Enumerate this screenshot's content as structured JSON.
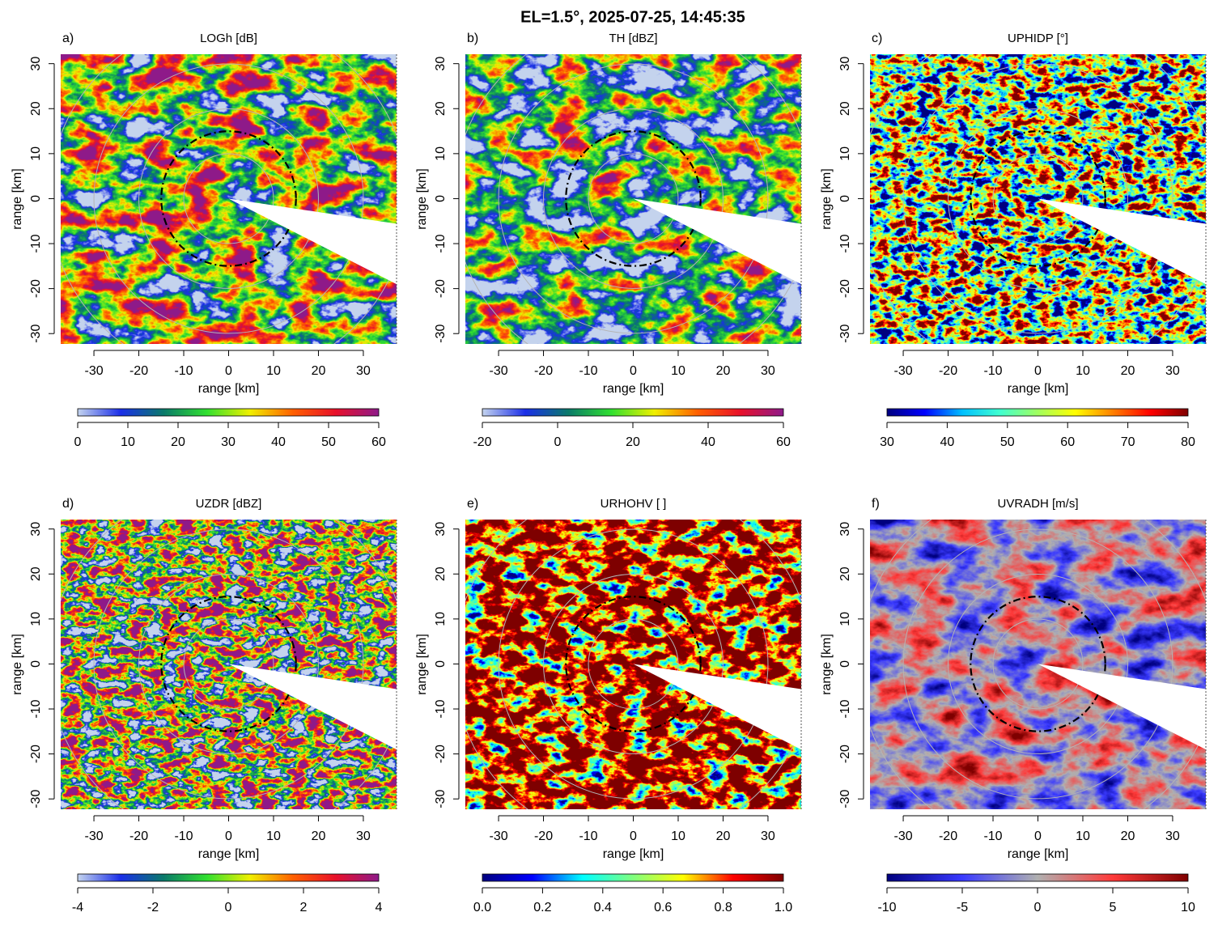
{
  "title": "EL=1.5°, 2025-07-25, 14:45:35",
  "chart_data": [
    {
      "type": "radar_ppi",
      "panel_label": "a)",
      "title": "LOGh [dB]",
      "xlabel": "range [km]",
      "ylabel": "range [km]",
      "xlim": [
        -37.4,
        37.4
      ],
      "ylim": [
        -32.3,
        32.1
      ],
      "xticks": [
        -30,
        -20,
        -10,
        0,
        10,
        20,
        30
      ],
      "yticks": [
        -30,
        -20,
        -10,
        0,
        10,
        20,
        30
      ],
      "cbar_lim": [
        0,
        60
      ],
      "cbar_ticks": [
        0,
        10,
        20,
        30,
        40,
        50,
        60
      ],
      "colormap": [
        "#c4d4ee",
        "#1a2ee8",
        "#0a7a6a",
        "#30e030",
        "#f0f000",
        "#ff6000",
        "#e8102a",
        "#8e1a8a"
      ]
    },
    {
      "type": "radar_ppi",
      "panel_label": "b)",
      "title": "TH [dBZ]",
      "xlabel": "range [km]",
      "ylabel": "range [km]",
      "xlim": [
        -37.4,
        37.4
      ],
      "ylim": [
        -32.3,
        32.1
      ],
      "xticks": [
        -30,
        -20,
        -10,
        0,
        10,
        20,
        30
      ],
      "yticks": [
        -30,
        -20,
        -10,
        0,
        10,
        20,
        30
      ],
      "cbar_lim": [
        -20,
        60
      ],
      "cbar_ticks": [
        -20,
        0,
        20,
        40,
        60
      ],
      "colormap": [
        "#c4d4ee",
        "#1a2ee8",
        "#0a7a6a",
        "#30e030",
        "#f0f000",
        "#ff6000",
        "#e8102a",
        "#8e1a8a"
      ]
    },
    {
      "type": "radar_ppi",
      "panel_label": "c)",
      "title": "UPHIDP [°]",
      "xlabel": "range [km]",
      "ylabel": "range [km]",
      "xlim": [
        -37.4,
        37.4
      ],
      "ylim": [
        -32.3,
        32.1
      ],
      "xticks": [
        -30,
        -20,
        -10,
        0,
        10,
        20,
        30
      ],
      "yticks": [
        -30,
        -20,
        -10,
        0,
        10,
        20,
        30
      ],
      "cbar_lim": [
        30,
        80
      ],
      "cbar_ticks": [
        30,
        40,
        50,
        60,
        70,
        80
      ],
      "colormap": [
        "#00007f",
        "#0000ff",
        "#00c0ff",
        "#40ffd0",
        "#a0ff60",
        "#ffff00",
        "#ff8000",
        "#ff0000",
        "#7f0000"
      ]
    },
    {
      "type": "radar_ppi",
      "panel_label": "d)",
      "title": "UZDR [dBZ]",
      "xlabel": "range [km]",
      "ylabel": "range [km]",
      "xlim": [
        -37.4,
        37.4
      ],
      "ylim": [
        -32.3,
        32.1
      ],
      "xticks": [
        -30,
        -20,
        -10,
        0,
        10,
        20,
        30
      ],
      "yticks": [
        -30,
        -20,
        -10,
        0,
        10,
        20,
        30
      ],
      "cbar_lim": [
        -4,
        4
      ],
      "cbar_ticks": [
        -4,
        -2,
        0,
        2,
        4
      ],
      "colormap": [
        "#c4d4ee",
        "#1a2ee8",
        "#0a7a6a",
        "#30e030",
        "#f0f000",
        "#ff6000",
        "#e8102a",
        "#8e1a8a"
      ]
    },
    {
      "type": "radar_ppi",
      "panel_label": "e)",
      "title": "URHOHV [ ]",
      "xlabel": "range [km]",
      "ylabel": "range [km]",
      "xlim": [
        -37.4,
        37.4
      ],
      "ylim": [
        -32.3,
        32.1
      ],
      "xticks": [
        -30,
        -20,
        -10,
        0,
        10,
        20,
        30
      ],
      "yticks": [
        -30,
        -20,
        -10,
        0,
        10,
        20,
        30
      ],
      "cbar_lim": [
        0,
        1
      ],
      "cbar_ticks": [
        {
          "value": 0,
          "label": "0.0"
        },
        {
          "value": 0.2,
          "label": "0.2"
        },
        {
          "value": 0.4,
          "label": "0.4"
        },
        {
          "value": 0.6,
          "label": "0.6"
        },
        {
          "value": 0.8,
          "label": "0.8"
        },
        {
          "value": 1,
          "label": "1.0"
        }
      ],
      "colormap": [
        "#00007f",
        "#0000ff",
        "#00ffff",
        "#7fff7f",
        "#ffff00",
        "#ff0000",
        "#7f0000"
      ]
    },
    {
      "type": "radar_ppi",
      "panel_label": "f)",
      "title": "UVRADH [m/s]",
      "xlabel": "range [km]",
      "ylabel": "range [km]",
      "xlim": [
        -37.4,
        37.4
      ],
      "ylim": [
        -32.3,
        32.1
      ],
      "xticks": [
        -30,
        -20,
        -10,
        0,
        10,
        20,
        30
      ],
      "yticks": [
        -30,
        -20,
        -10,
        0,
        10,
        20,
        30
      ],
      "cbar_lim": [
        -10,
        10
      ],
      "cbar_ticks": [
        -10,
        -5,
        0,
        5,
        10
      ],
      "colormap": [
        "#00007f",
        "#3a3aff",
        "#b0b0b0",
        "#ff3a3a",
        "#7f0000"
      ]
    }
  ]
}
